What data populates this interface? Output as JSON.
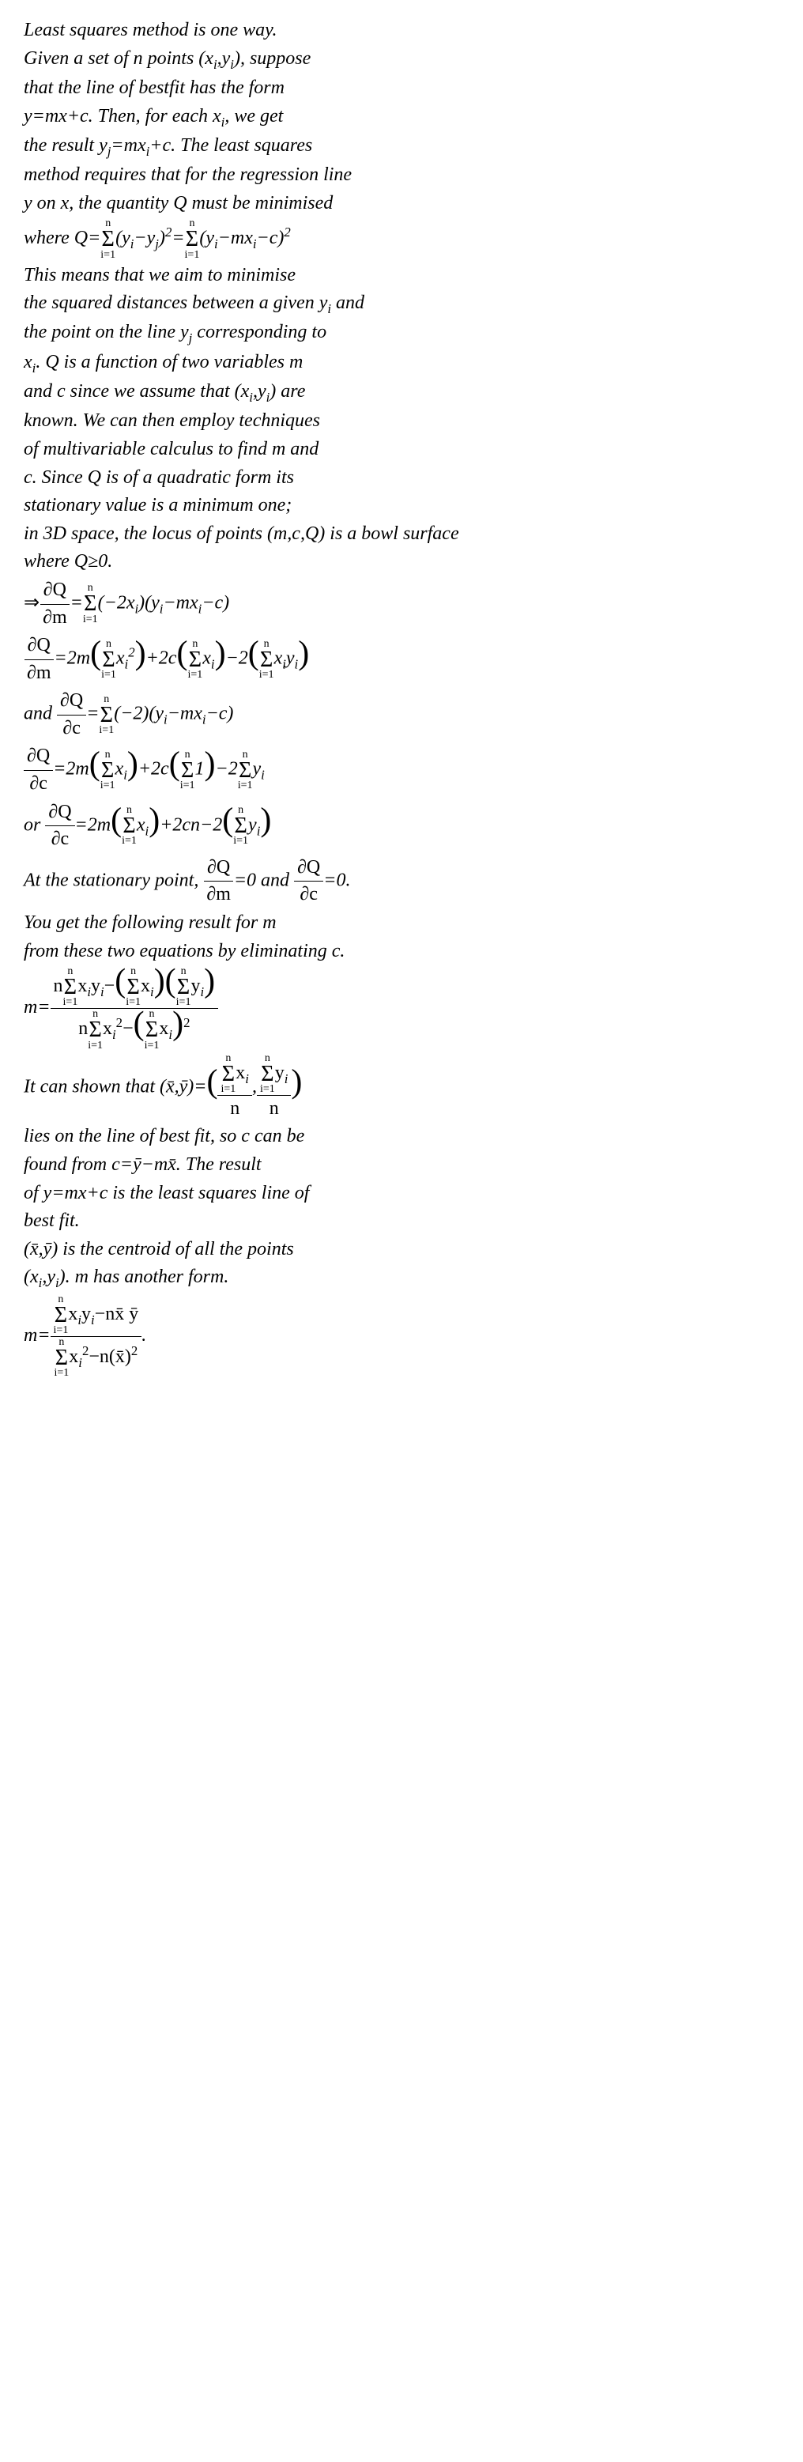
{
  "l1": "Least squares method is one way.",
  "l2a": "Given a set of n points (x",
  "l2b": ",y",
  "l2c": "), suppose",
  "l3": "that the line of bestfit has the form",
  "l4a": "y=mx+c. Then, for each x",
  "l4b": ", we get",
  "l5a": "the result y",
  "l5b": "=mx",
  "l5c": "+c. The least squares",
  "l6": "method requires that for the regression line",
  "l7": "y on x, the quantity Q must be minimised",
  "l8a": "where Q=",
  "l8b": "(y",
  "l8c": "−y",
  "l8d": ")",
  "l8e": "=",
  "l8f": "(y",
  "l8g": "−mx",
  "l8h": "−c)",
  "l9": "This means that we aim to minimise",
  "l10a": "the squared distances between a given y",
  "l10b": " and",
  "l11a": "the point on the line y",
  "l11b": " corresponding to",
  "l12a": "x",
  "l12b": ". Q is a function of two variables m",
  "l13a": "and c since we assume that (x",
  "l13b": ",y",
  "l13c": ") are",
  "l14": "known. We can then employ techniques",
  "l15": "of multivariable calculus to find m and",
  "l16": "c. Since Q is of a quadratic form its",
  "l17": "stationary value is a minimum one;",
  "l18": "in 3D space, the locus of points (m,c,Q) is a bowl surface",
  "l19": "where Q≥0.",
  "l20a": "⇒",
  "l20b": "=",
  "l20c": "(−2x",
  "l20d": ")(y",
  "l20e": "−mx",
  "l20f": "−c)",
  "l21a": "=2m",
  "l21b": "x",
  "l21c": "+2c",
  "l21d": "x",
  "l21e": "−2",
  "l21f": "x",
  "l21g": "y",
  "l22a": "and ",
  "l22b": "=",
  "l22c": "(−2)(y",
  "l22d": "−mx",
  "l22e": "−c)",
  "l23a": "=2m",
  "l23b": "x",
  "l23c": "+2c",
  "l23d": "1",
  "l23e": "−2",
  "l23f": "y",
  "l24a": "or ",
  "l24b": "=2m",
  "l24c": "x",
  "l24d": "+2cn−2",
  "l24e": "y",
  "l25a": "At the stationary point, ",
  "l25b": "=0 and ",
  "l25c": "=0.",
  "l26": "You get the following result for m",
  "l27": "from these two equations by eliminating c.",
  "l28a": "m=",
  "l28b": "n",
  "l28c": "x",
  "l28d": "y",
  "l28e": "−",
  "l28f": "x",
  "l28g": "y",
  "l28h": "n",
  "l28i": "x",
  "l28j": "−",
  "l28k": "x",
  "l29a": "It can shown that (x̄,ȳ)=",
  "l29b": "x",
  "l29c": ",",
  "l29d": "y",
  "l30": "lies on the line of best fit, so c can be",
  "l31": "found from c=ȳ−mx̄. The result",
  "l32": "of y=mx+c is the least squares line of",
  "l33": "best fit.",
  "l34": "(x̄,ȳ) is the centroid of all the points",
  "l35a": "(x",
  "l35b": ",y",
  "l35c": "). m has another form.",
  "l36a": "m=",
  "l36b": "x",
  "l36c": "y",
  "l36d": "−nx̄ ȳ",
  "l36e": "x",
  "l36f": "−n(x̄)",
  "l36g": ".",
  "sub_i": "i",
  "sub_j": "j",
  "sup_2": "2",
  "sup_n": "n",
  "sub_i1": "i=1",
  "pQpm": "∂Q",
  "pm": "∂m",
  "pc": "∂c",
  "n": "n"
}
